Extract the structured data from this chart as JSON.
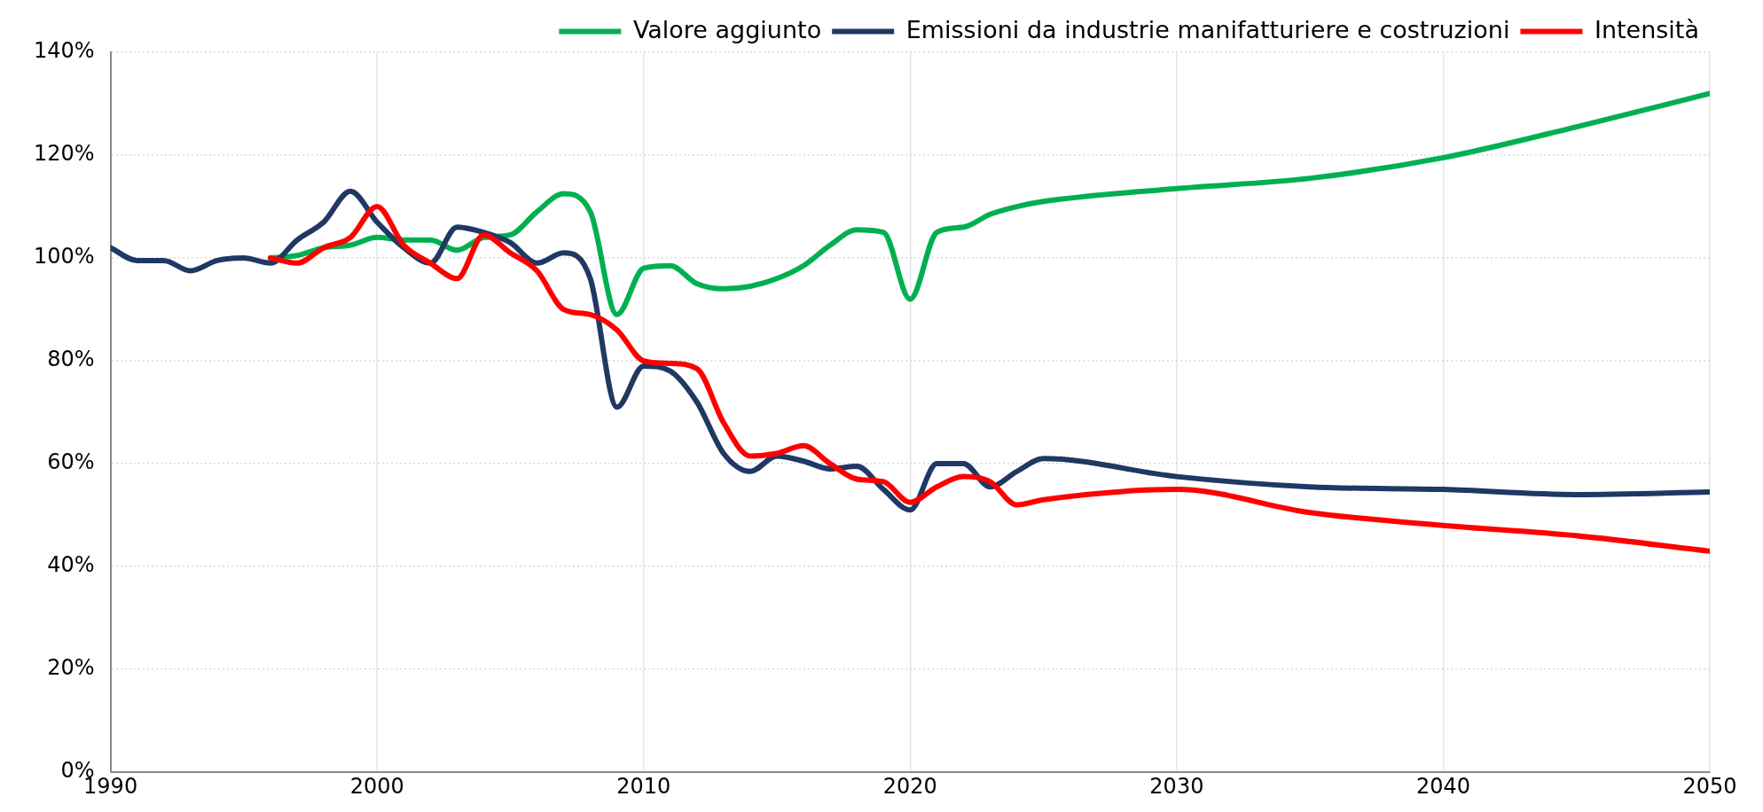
{
  "chart_data": {
    "type": "line",
    "xlim": [
      1990,
      2050
    ],
    "xticks": [
      1990,
      2000,
      2010,
      2020,
      2030,
      2040,
      2050
    ],
    "ylim": [
      0,
      140
    ],
    "yticks": [
      {
        "value": 0,
        "label": "0%"
      },
      {
        "value": 20,
        "label": "20%"
      },
      {
        "value": 40,
        "label": "40%"
      },
      {
        "value": 60,
        "label": "60%"
      },
      {
        "value": 80,
        "label": "80%"
      },
      {
        "value": 100,
        "label": "100%"
      },
      {
        "value": 120,
        "label": "120%"
      },
      {
        "value": 140,
        "label": "140%"
      }
    ],
    "grid": true,
    "legend": "top right",
    "marker": "none",
    "line_style": "solid",
    "series": [
      {
        "name": "Valore aggiunto",
        "color": "#00b050",
        "x": [
          1996,
          1997,
          1998,
          1999,
          2000,
          2001,
          2002,
          2003,
          2004,
          2005,
          2006,
          2007,
          2008,
          2009,
          2010,
          2011,
          2012,
          2013,
          2014,
          2015,
          2016,
          2017,
          2018,
          2019,
          2020,
          2021,
          2022,
          2023,
          2024,
          2025,
          2030,
          2035,
          2040,
          2045,
          2050
        ],
        "values": [
          100,
          100.5,
          102,
          102.5,
          104,
          103.5,
          103.5,
          101.5,
          104,
          104.5,
          109,
          112.5,
          109,
          89,
          98,
          98.5,
          95,
          94,
          94.5,
          96,
          98.5,
          102.5,
          105.5,
          105,
          92,
          105,
          106,
          108.5,
          110,
          111,
          113.5,
          115.5,
          119.5,
          125.5,
          132
        ]
      },
      {
        "name": "Emissioni da industrie manifatturiere e costruzioni",
        "color": "#1f3864",
        "x": [
          1990,
          1991,
          1992,
          1993,
          1994,
          1995,
          1996,
          1997,
          1998,
          1999,
          2000,
          2001,
          2002,
          2003,
          2004,
          2005,
          2006,
          2007,
          2008,
          2009,
          2010,
          2011,
          2012,
          2013,
          2014,
          2015,
          2016,
          2017,
          2018,
          2019,
          2020,
          2021,
          2022,
          2023,
          2024,
          2025,
          2030,
          2035,
          2040,
          2045,
          2050
        ],
        "values": [
          102,
          99.5,
          99.5,
          97.5,
          99.5,
          100,
          99,
          103.5,
          107,
          113,
          107,
          102,
          99,
          106,
          105,
          103,
          99,
          101,
          96,
          71,
          79,
          78,
          72,
          62,
          58.5,
          61.5,
          60.5,
          59,
          59.5,
          55,
          51,
          60,
          60,
          55.5,
          58.5,
          61,
          57.5,
          55.5,
          55,
          54,
          54.5
        ]
      },
      {
        "name": "Intensità",
        "color": "#ff0000",
        "x": [
          1996,
          1997,
          1998,
          1999,
          2000,
          2001,
          2002,
          2003,
          2004,
          2005,
          2006,
          2007,
          2008,
          2009,
          2010,
          2011,
          2012,
          2013,
          2014,
          2015,
          2016,
          2017,
          2018,
          2019,
          2020,
          2021,
          2022,
          2023,
          2024,
          2025,
          2030,
          2035,
          2040,
          2045,
          2050
        ],
        "values": [
          100,
          99,
          102,
          104,
          110,
          102.5,
          99,
          96,
          104.5,
          101,
          97.5,
          90,
          89,
          86,
          80,
          79.5,
          78.5,
          68,
          61.5,
          62,
          63.5,
          60,
          57,
          56.5,
          52.5,
          55.5,
          57.5,
          56.5,
          52,
          53,
          55,
          50.5,
          48,
          46,
          43
        ]
      }
    ]
  }
}
